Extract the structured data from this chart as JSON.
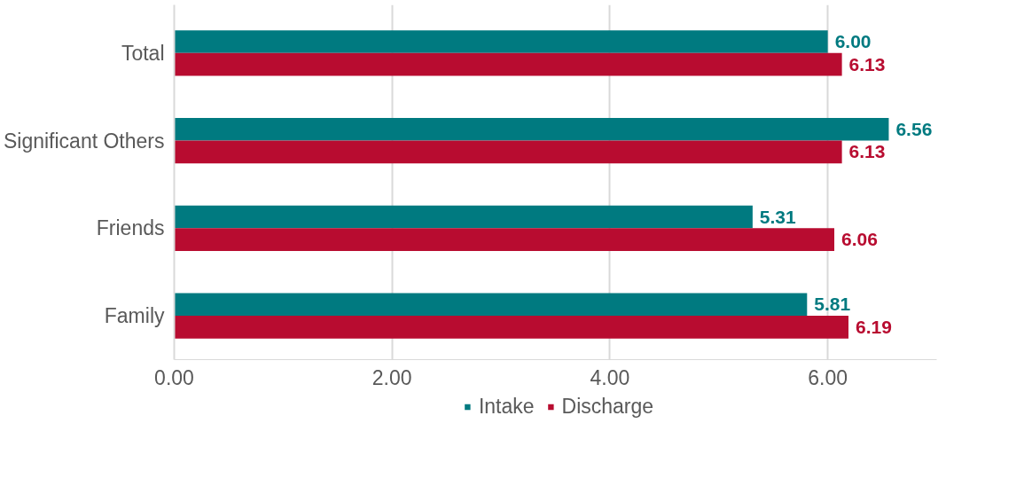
{
  "chart_data": {
    "type": "bar",
    "orientation": "horizontal",
    "categories": [
      "Total",
      "Significant Others",
      "Friends",
      "Family"
    ],
    "series": [
      {
        "name": "Intake",
        "color": "#007a80",
        "values": [
          6.0,
          6.56,
          5.31,
          5.81
        ],
        "value_labels": [
          "6.00",
          "6.56",
          "5.31",
          "5.81"
        ]
      },
      {
        "name": "Discharge",
        "color": "#b80c30",
        "values": [
          6.13,
          6.13,
          6.06,
          6.19
        ],
        "value_labels": [
          "6.13",
          "6.13",
          "6.06",
          "6.19"
        ]
      }
    ],
    "xlim": [
      0,
      7
    ],
    "xticks": [
      {
        "value": 0,
        "label": "0.00"
      },
      {
        "value": 2,
        "label": "2.00"
      },
      {
        "value": 4,
        "label": "4.00"
      },
      {
        "value": 6,
        "label": "6.00"
      }
    ],
    "grid": "x",
    "legend": "bottom"
  }
}
